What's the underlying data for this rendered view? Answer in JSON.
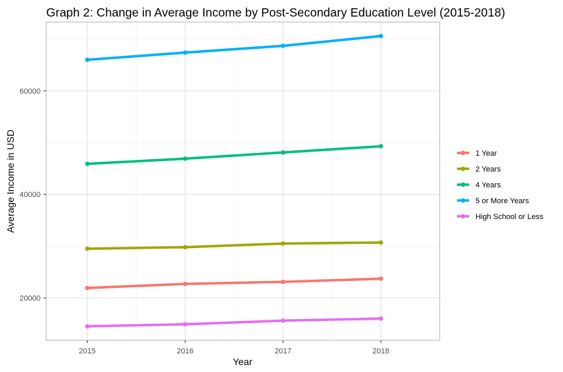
{
  "chart_data": {
    "type": "line",
    "title": "Graph 2: Change in Average Income by Post-Secondary Education Level (2015-2018)",
    "xlabel": "Year",
    "ylabel": "Average Income in USD",
    "x": [
      2015,
      2016,
      2017,
      2018
    ],
    "x_tick_labels": [
      "2015",
      "2016",
      "2017",
      "2018"
    ],
    "xlim": [
      2014.58,
      2018.6
    ],
    "y_ticks": [
      20000,
      40000,
      60000
    ],
    "y_tick_labels": [
      "20000",
      "40000",
      "60000"
    ],
    "ylim": [
      11800,
      73300
    ],
    "grid": true,
    "legend_position": "right",
    "series": [
      {
        "name": "1 Year",
        "color": "#F8766D",
        "values": [
          21900,
          22700,
          23100,
          23700
        ]
      },
      {
        "name": "2 Years",
        "color": "#A3A500",
        "values": [
          29500,
          29800,
          30500,
          30700
        ]
      },
      {
        "name": "4 Years",
        "color": "#00BF7D",
        "values": [
          45900,
          46900,
          48100,
          49300
        ]
      },
      {
        "name": "5 or More Years",
        "color": "#00B0F6",
        "values": [
          66000,
          67400,
          68700,
          70600
        ]
      },
      {
        "name": "High School or Less",
        "color": "#E76BF3",
        "values": [
          14500,
          14900,
          15600,
          16000
        ]
      }
    ]
  }
}
